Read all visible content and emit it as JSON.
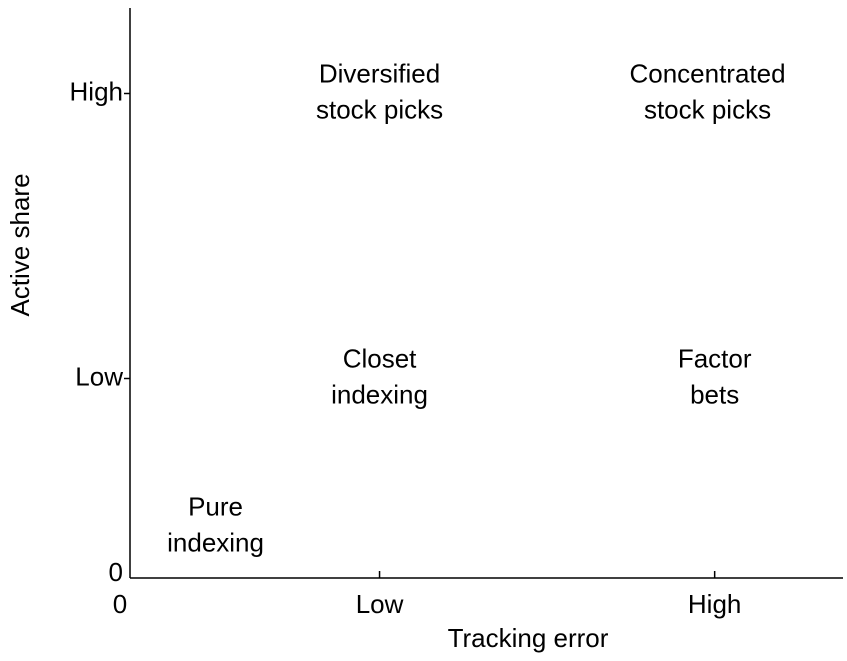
{
  "chart_data": {
    "type": "scatter",
    "xlabel": "Tracking error",
    "ylabel": "Active share",
    "xlim": [
      0,
      10
    ],
    "ylim": [
      0,
      10
    ],
    "xticks": [
      0,
      {
        "value": 3.5,
        "label": "Low"
      },
      {
        "value": 8.2,
        "label": "High"
      }
    ],
    "yticks": [
      0,
      {
        "value": 3.5,
        "label": "Low"
      },
      {
        "value": 8.5,
        "label": "High"
      }
    ],
    "annotations": [
      {
        "lines": [
          "Diversified",
          "stock picks"
        ],
        "x": 3.5,
        "y": 8.5
      },
      {
        "lines": [
          "Concentrated",
          "stock picks"
        ],
        "x": 8.1,
        "y": 8.5
      },
      {
        "lines": [
          "Closet",
          "indexing"
        ],
        "x": 3.5,
        "y": 3.5
      },
      {
        "lines": [
          "Factor",
          "bets"
        ],
        "x": 8.2,
        "y": 3.5
      },
      {
        "lines": [
          "Pure",
          "indexing"
        ],
        "x": 1.2,
        "y": 0.9
      }
    ]
  }
}
